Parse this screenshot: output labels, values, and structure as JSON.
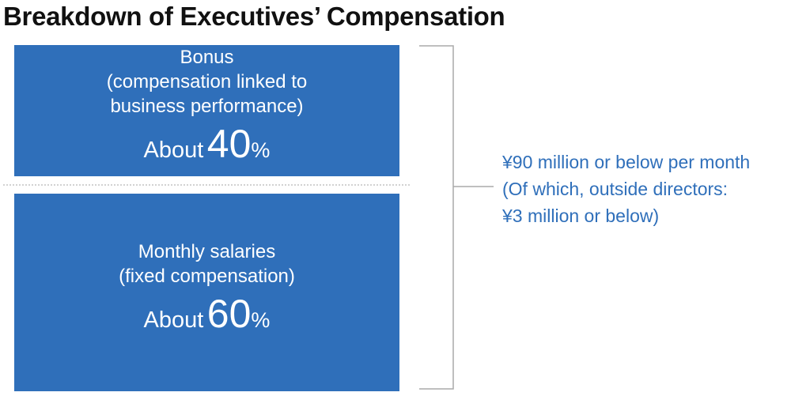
{
  "title": "Breakdown of Executives’ Compensation",
  "colors": {
    "box_fill": "#2f6fba",
    "note_text": "#2f6fba",
    "bracket_line": "#aaaaaa",
    "divider": "#d2d2d2"
  },
  "segments": [
    {
      "lines": [
        "Bonus",
        "(compensation linked to",
        "business performance)"
      ],
      "prefix": "About",
      "value": "40",
      "unit": "%"
    },
    {
      "lines": [
        "Monthly salaries",
        "(fixed compensation)"
      ],
      "prefix": "About",
      "value": "60",
      "unit": "%"
    }
  ],
  "note": {
    "lines": [
      "¥90 million or below per month",
      "(Of which, outside directors:",
      "¥3 million or below)"
    ]
  }
}
